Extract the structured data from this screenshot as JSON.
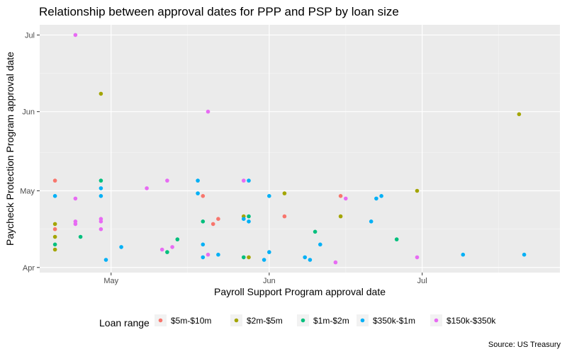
{
  "chart_data": {
    "type": "scatter",
    "title": "Relationship between approval dates for PPP and PSP by loan size",
    "xlabel": "Payroll Support Program approval date",
    "ylabel": "Paycheck Protection Program approval date",
    "caption": "Source: US Treasury",
    "x_ticks": [
      {
        "label": "May",
        "value": "2020-05-01"
      },
      {
        "label": "Jun",
        "value": "2020-06-01"
      },
      {
        "label": "Jul",
        "value": "2020-07-01"
      }
    ],
    "y_ticks": [
      {
        "label": "Apr",
        "value": "2020-04-01"
      },
      {
        "label": "May",
        "value": "2020-05-01"
      },
      {
        "label": "Jun",
        "value": "2020-06-01"
      },
      {
        "label": "Jul",
        "value": "2020-07-01"
      }
    ],
    "xlim": [
      "2020-04-17",
      "2020-07-28"
    ],
    "ylim": [
      "2020-03-30",
      "2020-07-05"
    ],
    "grid": true,
    "legend": {
      "title": "Loan range",
      "position": "bottom"
    },
    "series": [
      {
        "name": "$5m-$10m",
        "color": "#F8766D",
        "points": [
          [
            "2020-04-20",
            "2020-05-05"
          ],
          [
            "2020-04-20",
            "2020-04-16"
          ],
          [
            "2020-05-19",
            "2020-04-29"
          ],
          [
            "2020-05-21",
            "2020-04-18"
          ],
          [
            "2020-05-22",
            "2020-04-20"
          ],
          [
            "2020-06-04",
            "2020-04-21"
          ],
          [
            "2020-06-15",
            "2020-04-29"
          ]
        ]
      },
      {
        "name": "$2m-$5m",
        "color": "#A3A500",
        "points": [
          [
            "2020-04-20",
            "2020-04-18"
          ],
          [
            "2020-04-20",
            "2020-04-13"
          ],
          [
            "2020-04-20",
            "2020-04-08"
          ],
          [
            "2020-04-29",
            "2020-06-08"
          ],
          [
            "2020-05-27",
            "2020-04-21"
          ],
          [
            "2020-05-28",
            "2020-04-05"
          ],
          [
            "2020-06-04",
            "2020-04-30"
          ],
          [
            "2020-06-15",
            "2020-04-21"
          ],
          [
            "2020-06-30",
            "2020-05-01"
          ],
          [
            "2020-07-20",
            "2020-05-31"
          ]
        ]
      },
      {
        "name": "$1m-$2m",
        "color": "#00BF7D",
        "points": [
          [
            "2020-04-20",
            "2020-04-10"
          ],
          [
            "2020-04-25",
            "2020-04-13"
          ],
          [
            "2020-04-29",
            "2020-05-05"
          ],
          [
            "2020-05-12",
            "2020-04-07"
          ],
          [
            "2020-05-14",
            "2020-04-12"
          ],
          [
            "2020-05-19",
            "2020-04-19"
          ],
          [
            "2020-05-27",
            "2020-04-05"
          ],
          [
            "2020-05-28",
            "2020-04-21"
          ],
          [
            "2020-06-10",
            "2020-04-15"
          ],
          [
            "2020-06-26",
            "2020-04-12"
          ]
        ]
      },
      {
        "name": "$350k-$1m",
        "color": "#00B0F6",
        "points": [
          [
            "2020-04-20",
            "2020-04-29"
          ],
          [
            "2020-04-29",
            "2020-04-29"
          ],
          [
            "2020-04-29",
            "2020-05-02"
          ],
          [
            "2020-04-30",
            "2020-04-04"
          ],
          [
            "2020-05-03",
            "2020-04-09"
          ],
          [
            "2020-05-18",
            "2020-05-05"
          ],
          [
            "2020-05-18",
            "2020-04-30"
          ],
          [
            "2020-05-19",
            "2020-04-10"
          ],
          [
            "2020-05-19",
            "2020-04-05"
          ],
          [
            "2020-05-22",
            "2020-04-06"
          ],
          [
            "2020-05-27",
            "2020-04-20"
          ],
          [
            "2020-05-28",
            "2020-05-05"
          ],
          [
            "2020-05-28",
            "2020-04-19"
          ],
          [
            "2020-05-31",
            "2020-04-04"
          ],
          [
            "2020-06-01",
            "2020-04-07"
          ],
          [
            "2020-06-01",
            "2020-04-29"
          ],
          [
            "2020-06-08",
            "2020-04-05"
          ],
          [
            "2020-06-09",
            "2020-04-04"
          ],
          [
            "2020-06-11",
            "2020-04-10"
          ],
          [
            "2020-06-21",
            "2020-04-19"
          ],
          [
            "2020-06-22",
            "2020-04-28"
          ],
          [
            "2020-06-23",
            "2020-04-29"
          ],
          [
            "2020-07-09",
            "2020-04-06"
          ],
          [
            "2020-07-21",
            "2020-04-06"
          ]
        ]
      },
      {
        "name": "$150k-$350k",
        "color": "#E76BF3",
        "points": [
          [
            "2020-04-24",
            "2020-07-01"
          ],
          [
            "2020-04-24",
            "2020-04-28"
          ],
          [
            "2020-04-24",
            "2020-04-19"
          ],
          [
            "2020-04-24",
            "2020-04-18"
          ],
          [
            "2020-04-29",
            "2020-04-20"
          ],
          [
            "2020-04-29",
            "2020-04-19"
          ],
          [
            "2020-04-29",
            "2020-04-16"
          ],
          [
            "2020-05-08",
            "2020-05-02"
          ],
          [
            "2020-05-11",
            "2020-04-08"
          ],
          [
            "2020-05-12",
            "2020-05-05"
          ],
          [
            "2020-05-13",
            "2020-04-09"
          ],
          [
            "2020-05-20",
            "2020-06-01"
          ],
          [
            "2020-05-20",
            "2020-04-06"
          ],
          [
            "2020-05-27",
            "2020-05-05"
          ],
          [
            "2020-06-14",
            "2020-04-03"
          ],
          [
            "2020-06-16",
            "2020-04-28"
          ],
          [
            "2020-06-30",
            "2020-04-05"
          ]
        ]
      }
    ]
  }
}
